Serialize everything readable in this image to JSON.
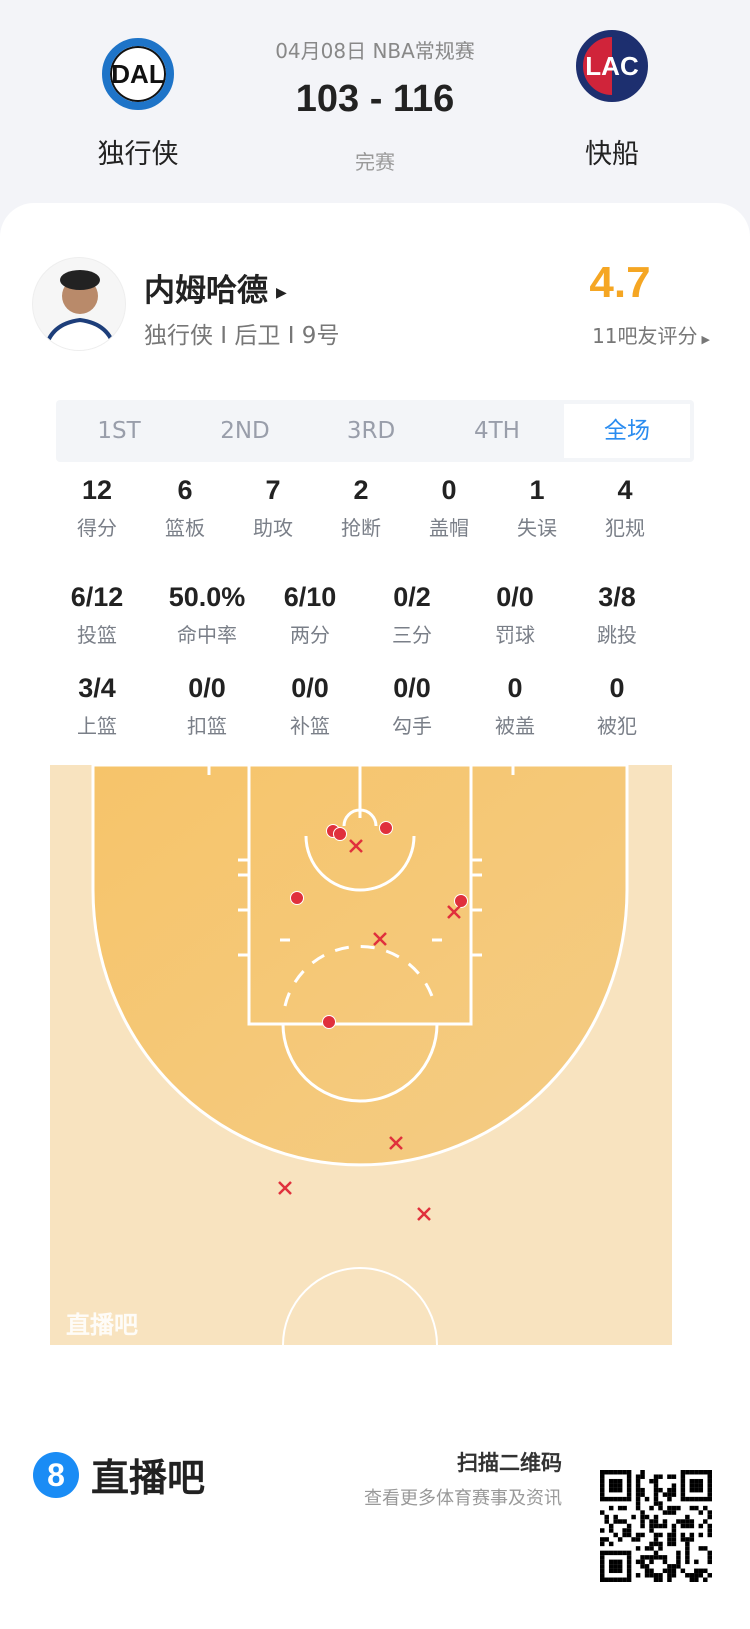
{
  "game": {
    "date_league": "04月08日 NBA常规赛",
    "score": "103 - 116",
    "status": "完赛"
  },
  "home": {
    "abbr": "DAL",
    "name": "独行侠",
    "color": "#1e74c8"
  },
  "away": {
    "abbr": "LAC",
    "name": "快船",
    "color": "#1d2f6f",
    "accent": "#d0243a"
  },
  "player": {
    "name": "内姆哈德",
    "info": "独行侠 I 后卫 I 9号",
    "rating": "4.7",
    "rating_label": "11吧友评分",
    "rating_color": "#f5a623"
  },
  "tabs": [
    {
      "label": "1ST"
    },
    {
      "label": "2ND"
    },
    {
      "label": "3RD"
    },
    {
      "label": "4TH"
    },
    {
      "label": "全场",
      "active": true
    }
  ],
  "stats_row1": [
    {
      "v": "12",
      "l": "得分"
    },
    {
      "v": "6",
      "l": "篮板"
    },
    {
      "v": "7",
      "l": "助攻"
    },
    {
      "v": "2",
      "l": "抢断"
    },
    {
      "v": "0",
      "l": "盖帽"
    },
    {
      "v": "1",
      "l": "失误"
    },
    {
      "v": "4",
      "l": "犯规"
    }
  ],
  "stats_row2": [
    {
      "v": "6/12",
      "l": "投篮"
    },
    {
      "v": "50.0%",
      "l": "命中率"
    },
    {
      "v": "6/10",
      "l": "两分"
    },
    {
      "v": "0/2",
      "l": "三分"
    },
    {
      "v": "0/0",
      "l": "罚球"
    },
    {
      "v": "3/8",
      "l": "跳投"
    }
  ],
  "stats_row3": [
    {
      "v": "3/4",
      "l": "上篮"
    },
    {
      "v": "0/0",
      "l": "扣篮"
    },
    {
      "v": "0/0",
      "l": "补篮"
    },
    {
      "v": "0/0",
      "l": "勾手"
    },
    {
      "v": "0",
      "l": "被盖"
    },
    {
      "v": "0",
      "l": "被犯"
    }
  ],
  "shot_chart": {
    "watermark": "直播吧",
    "made_color": "#e0303c",
    "shots": [
      "made",
      "made",
      "made",
      "made",
      "made",
      "made",
      "missed",
      "missed",
      "missed",
      "missed",
      "missed",
      "missed"
    ]
  },
  "footer": {
    "brand": "直播吧",
    "brand_mark": "8",
    "brand_color": "#1a8cf5",
    "qr_title": "扫描二维码",
    "qr_subtitle": "查看更多体育赛事及资讯"
  }
}
